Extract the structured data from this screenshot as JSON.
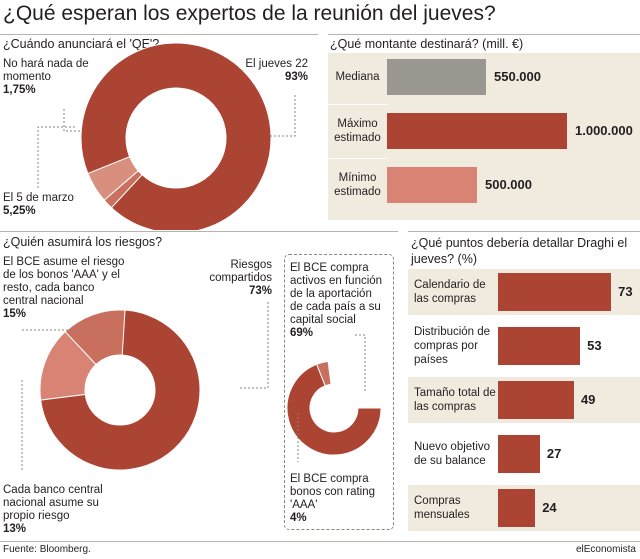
{
  "title": "¿Qué esperan los expertos de la reunión del jueves?",
  "qe_date": {
    "question": "¿Cuándo anunciará el 'QE'?",
    "slices": [
      {
        "label": "El jueves 22",
        "pct": "93%",
        "value": 93,
        "color": "#ac4433"
      },
      {
        "label": "No hará nada de momento",
        "pct": "1,75%",
        "value": 1.75,
        "color": "#c9705f"
      },
      {
        "label": "El 5 de marzo",
        "pct": "5,25%",
        "value": 5.25,
        "color": "#d98f7e"
      }
    ]
  },
  "amount": {
    "question": "¿Qué montante destinará? (mill. €)",
    "bars": [
      {
        "label": "Mediana",
        "value": 550000,
        "text": "550.000",
        "color": "#9a9690"
      },
      {
        "label": "Máximo estimado",
        "value": 1000000,
        "text": "1.000.000",
        "color": "#ac4433"
      },
      {
        "label": "Mínimo estimado",
        "value": 500000,
        "text": "500.000",
        "color": "#d98374"
      }
    ]
  },
  "risks": {
    "question": "¿Quién asumirá los riesgos?",
    "slices": [
      {
        "label": "Riesgos compartidos",
        "pct": "73%",
        "value": 73,
        "color": "#ac4433"
      },
      {
        "label": "El BCE asume el riesgo de los bonos 'AAA' y el resto, cada banco central nacional",
        "pct": "15%",
        "value": 15,
        "color": "#d98374"
      },
      {
        "label": "Cada banco central nacional asume su propio riesgo",
        "pct": "13%",
        "value": 13,
        "color": "#c96f5e"
      }
    ],
    "sub_slices": [
      {
        "label": "El BCE compra activos en función de la aportación de cada país a su capital social",
        "pct": "69%",
        "value": 69,
        "color": "#ac4433"
      },
      {
        "label": "El BCE compra bonos con rating 'AAA'",
        "pct": "4%",
        "value": 4,
        "color": "#c96f5e"
      }
    ]
  },
  "details": {
    "question": "¿Qué puntos debería detallar Draghi el jueves? (%)",
    "bars": [
      {
        "label": "Calendario de las compras",
        "value": 73
      },
      {
        "label": "Distribución de compras por países",
        "value": 53
      },
      {
        "label": "Tamaño total de las compras",
        "value": 49
      },
      {
        "label": "Nuevo objetivo de su balance",
        "value": 27
      },
      {
        "label": "Compras mensuales",
        "value": 24
      }
    ],
    "color": "#ac4433"
  },
  "footer": {
    "source": "Fuente: Bloomberg.",
    "brand": "elEconomista"
  }
}
